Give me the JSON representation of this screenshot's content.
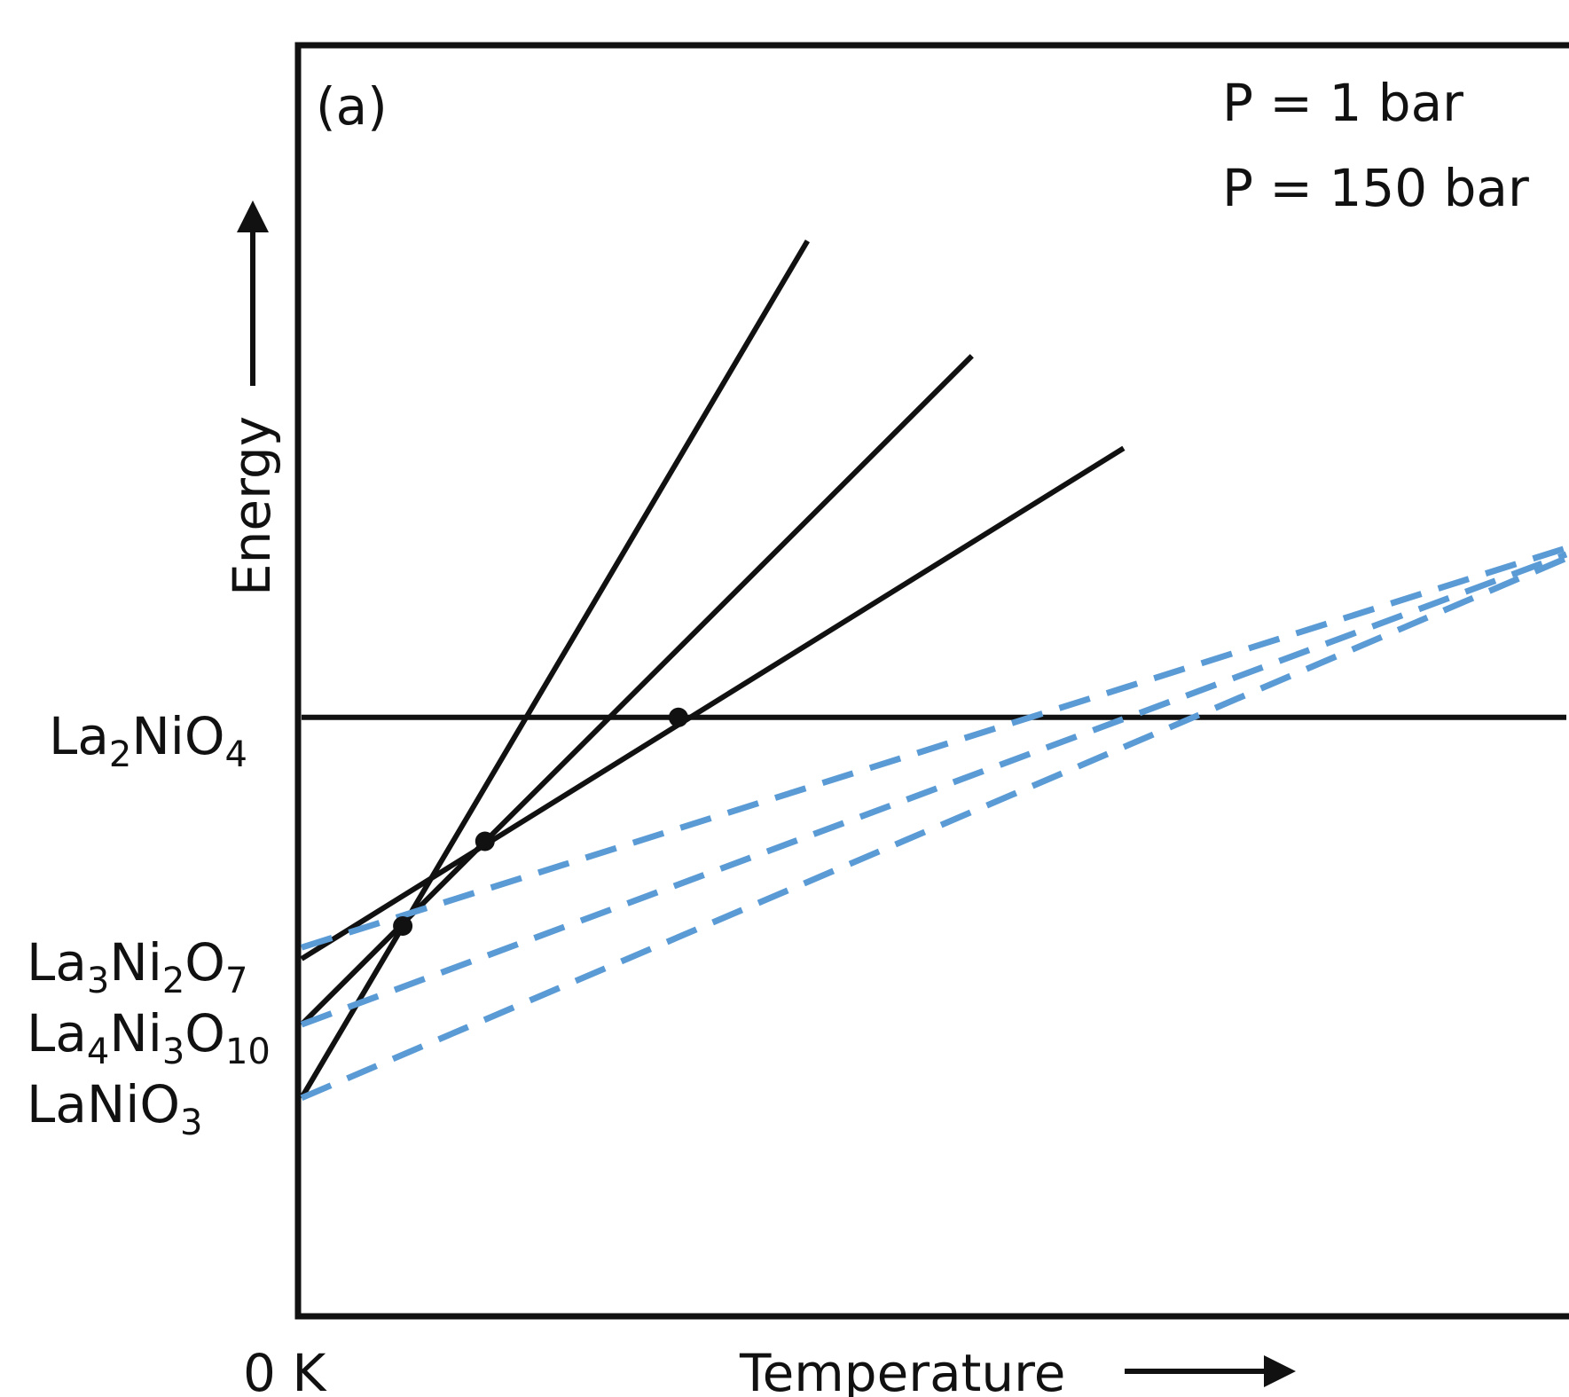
{
  "chart_data": {
    "type": "line",
    "panel_label": "(a)",
    "xlabel": "Temperature",
    "ylabel": "Energy",
    "x_origin_label": "0 K",
    "xlim": [
      0,
      1
    ],
    "ylim": [
      0,
      1
    ],
    "legend": {
      "placement": "top-right",
      "entries": [
        {
          "text": "P = 1 bar",
          "color": "#111111",
          "style": "solid"
        },
        {
          "text": "P = 150 bar",
          "color": "#5b9bd5",
          "style": "dashed"
        }
      ]
    },
    "phases": [
      {
        "name": "La2NiO4",
        "formula": [
          [
            "La",
            ""
          ],
          [
            "2",
            "sub"
          ],
          [
            "NiO",
            ""
          ],
          [
            "4",
            "sub"
          ]
        ]
      },
      {
        "name": "La3Ni2O7",
        "formula": [
          [
            "La",
            ""
          ],
          [
            "3",
            "sub"
          ],
          [
            "Ni",
            ""
          ],
          [
            "2",
            "sub"
          ],
          [
            "O",
            ""
          ],
          [
            "7",
            "sub"
          ]
        ]
      },
      {
        "name": "La4Ni3O10",
        "formula": [
          [
            "La",
            ""
          ],
          [
            "4",
            "sub"
          ],
          [
            "Ni",
            ""
          ],
          [
            "3",
            "sub"
          ],
          [
            "O",
            ""
          ],
          [
            "10",
            "sub"
          ]
        ]
      },
      {
        "name": "LaNiO3",
        "formula": [
          [
            "LaNiO",
            ""
          ],
          [
            "3",
            "sub"
          ]
        ]
      }
    ],
    "series": [
      {
        "phase": "La2NiO4",
        "pressure": "P = 1 bar",
        "style": "solid",
        "color": "#111111",
        "x": [
          0,
          1.0
        ],
        "y": [
          0.471,
          0.471
        ]
      },
      {
        "phase": "La3Ni2O7",
        "pressure": "P = 1 bar",
        "style": "solid",
        "color": "#111111",
        "x": [
          0,
          0.65
        ],
        "y": [
          0.28,
          0.684
        ]
      },
      {
        "phase": "La4Ni3O10",
        "pressure": "P = 1 bar",
        "style": "solid",
        "color": "#111111",
        "x": [
          0,
          0.53
        ],
        "y": [
          0.228,
          0.757
        ]
      },
      {
        "phase": "LaNiO3",
        "pressure": "P = 1 bar",
        "style": "solid",
        "color": "#111111",
        "x": [
          0,
          0.4
        ],
        "y": [
          0.17,
          0.848
        ]
      },
      {
        "phase": "La3Ni2O7",
        "pressure": "P = 150 bar",
        "style": "dashed",
        "color": "#5b9bd5",
        "x": [
          0,
          1.0
        ],
        "y": [
          0.289,
          0.605
        ]
      },
      {
        "phase": "La4Ni3O10",
        "pressure": "P = 150 bar",
        "style": "dashed",
        "color": "#5b9bd5",
        "x": [
          0,
          1.0
        ],
        "y": [
          0.228,
          0.6
        ]
      },
      {
        "phase": "LaNiO3",
        "pressure": "P = 150 bar",
        "style": "dashed",
        "color": "#5b9bd5",
        "x": [
          0,
          1.0
        ],
        "y": [
          0.17,
          0.597
        ]
      }
    ],
    "markers": [
      {
        "x": 0.08,
        "y": 0.306
      },
      {
        "x": 0.145,
        "y": 0.373
      },
      {
        "x": 0.298,
        "y": 0.471
      }
    ]
  }
}
